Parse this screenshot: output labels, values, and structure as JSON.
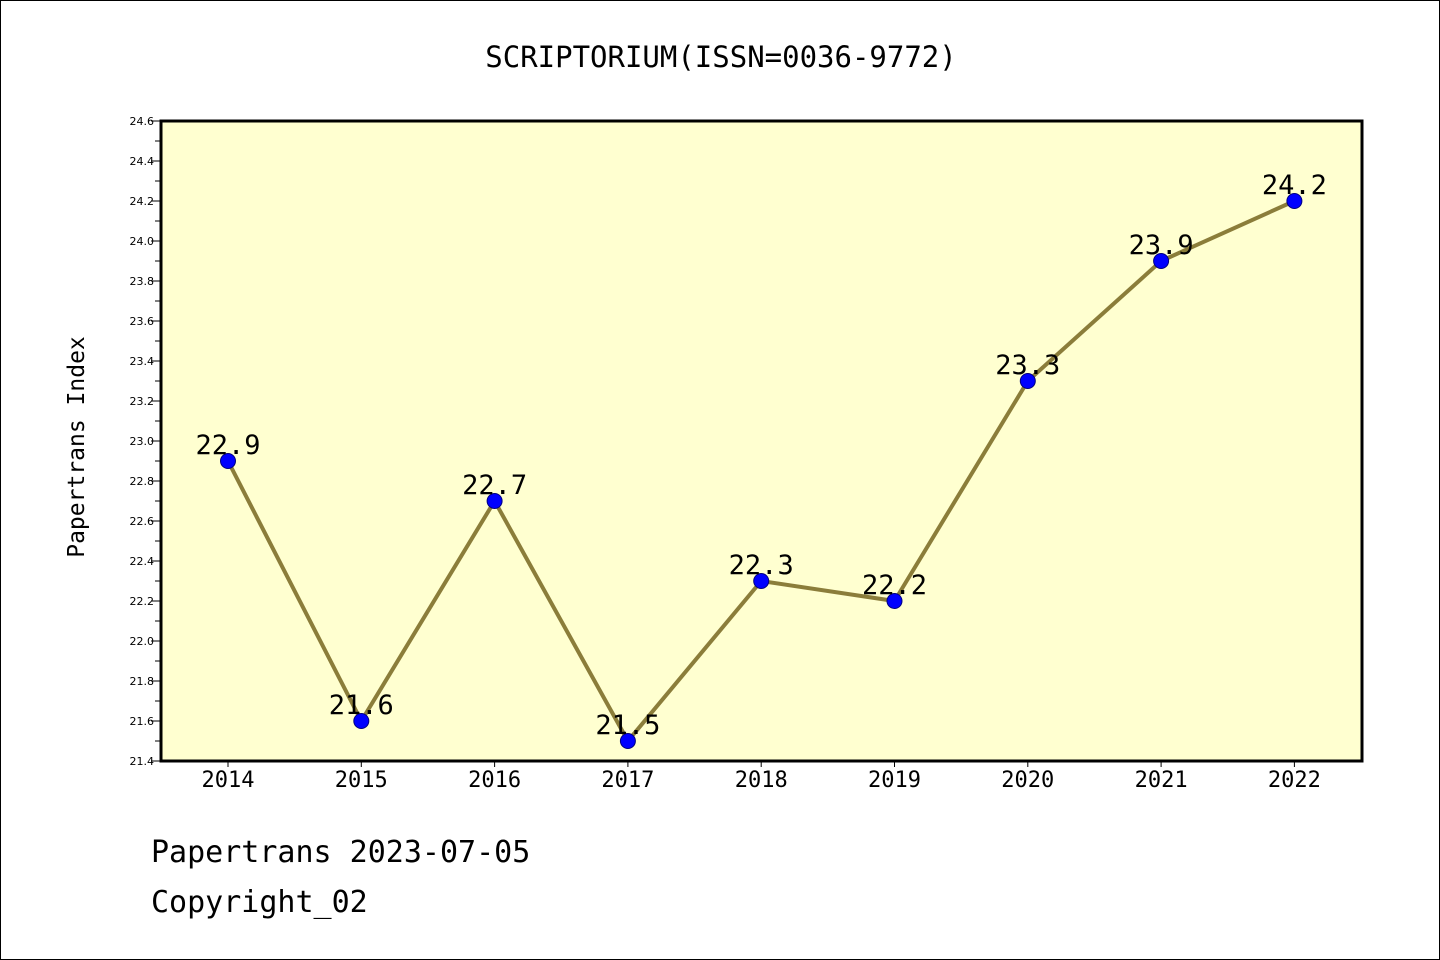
{
  "title": "SCRIPTORIUM(ISSN=0036-9772)",
  "footer": {
    "date_line": "Papertrans 2023-07-05",
    "copyright": "Copyright_02"
  },
  "chart_data": {
    "type": "line",
    "title": "SCRIPTORIUM(ISSN=0036-9772)",
    "xlabel": "",
    "ylabel": "Papertrans Index",
    "categories": [
      "2014",
      "2015",
      "2016",
      "2017",
      "2018",
      "2019",
      "2020",
      "2021",
      "2022"
    ],
    "series": [
      {
        "values": [
          22.9,
          21.6,
          22.7,
          21.5,
          22.3,
          22.2,
          23.3,
          23.9,
          24.2
        ]
      }
    ],
    "data_labels": [
      "22.9",
      "21.6",
      "22.7",
      "21.5",
      "22.3",
      "22.2",
      "23.3",
      "23.9",
      "24.2"
    ],
    "ylim": [
      21.4,
      24.6
    ],
    "yticks": [
      "21.4",
      "21.6",
      "21.8",
      "22.0",
      "22.2",
      "22.4",
      "22.6",
      "22.8",
      "23.0",
      "23.2",
      "23.4",
      "23.6",
      "23.8",
      "24.0",
      "24.2",
      "24.4",
      "24.6"
    ],
    "grid": false,
    "legend": "none",
    "colors": {
      "plot_background": "#ffffd0",
      "line": "#8b7d3a",
      "marker_fill": "#0000ff",
      "marker_edge": "#000080",
      "axes": "#000000"
    }
  }
}
